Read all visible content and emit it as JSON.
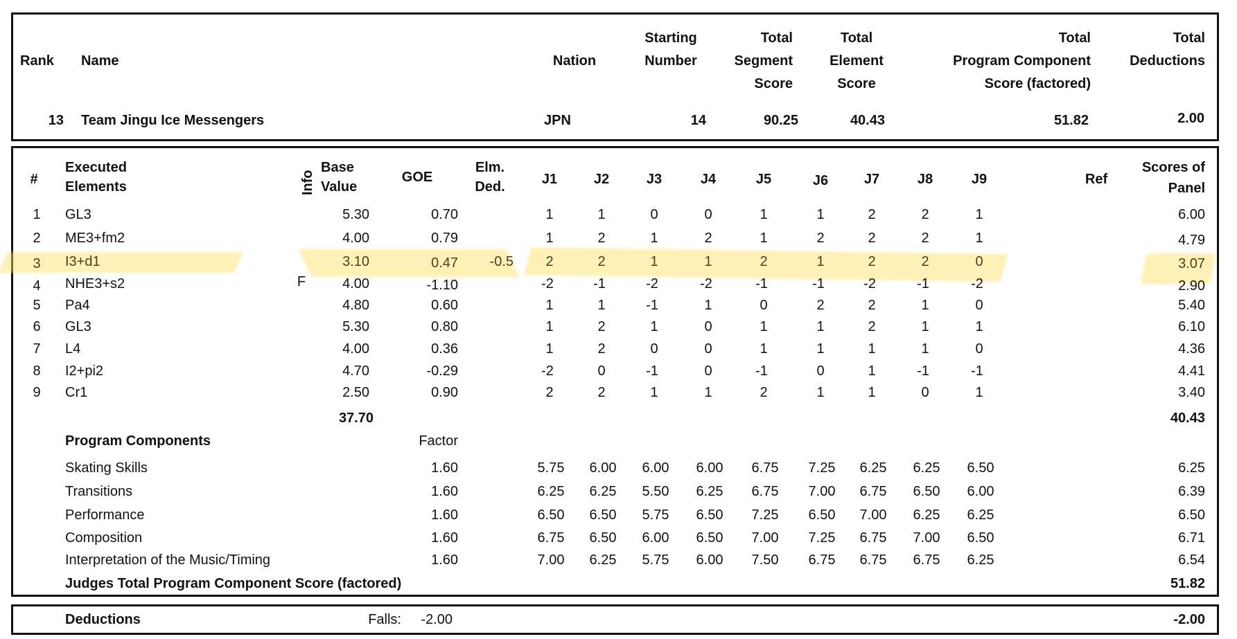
{
  "summary": {
    "headers": {
      "rank": "Rank",
      "name": "Name",
      "nation": "Nation",
      "starting_number": [
        "Starting",
        "Number"
      ],
      "total_segment_score": [
        "Total",
        "Segment",
        "Score"
      ],
      "total_element_score": [
        "Total",
        "Element",
        "Score"
      ],
      "program_component_score": [
        "Total",
        "Program  Component",
        "Score (factored)"
      ],
      "total_deductions": [
        "Total",
        "Deductions"
      ]
    },
    "row": {
      "rank": "13",
      "name": "Team Jingu Ice Messengers",
      "nation": "JPN",
      "starting_number": "14",
      "total_segment_score": "90.25",
      "total_element_score": "40.43",
      "program_component_score": "51.82",
      "total_deductions": "2.00"
    }
  },
  "elements": {
    "headers": {
      "num": "#",
      "executed": [
        "Executed",
        "Elements"
      ],
      "info": "Info",
      "base_value": [
        "Base",
        "Value"
      ],
      "goe": "GOE",
      "elm_ded": [
        "Elm.",
        "Ded."
      ],
      "judges": [
        "J1",
        "J2",
        "J3",
        "J4",
        "J5",
        "J6",
        "J7",
        "J8",
        "J9"
      ],
      "ref": "Ref",
      "scores_of_panel": [
        "Scores of",
        "Panel"
      ]
    },
    "highlight_color": "#FFDE5A",
    "highlighted_row": 3,
    "rows": [
      {
        "num": "1",
        "element": "GL3",
        "info": "",
        "base": "5.30",
        "goe": "0.70",
        "ded": "",
        "judges": [
          "1",
          "1",
          "0",
          "0",
          "1",
          "1",
          "2",
          "2",
          "1"
        ],
        "panel": "6.00"
      },
      {
        "num": "2",
        "element": "ME3+fm2",
        "info": "",
        "base": "4.00",
        "goe": "0.79",
        "ded": "",
        "judges": [
          "1",
          "2",
          "1",
          "2",
          "1",
          "2",
          "2",
          "2",
          "1"
        ],
        "panel": "4.79"
      },
      {
        "num": "3",
        "element": "I3+d1",
        "info": "",
        "base": "3.10",
        "goe": "0.47",
        "ded": "-0.5",
        "judges": [
          "2",
          "2",
          "1",
          "1",
          "2",
          "1",
          "2",
          "2",
          "0"
        ],
        "panel": "3.07"
      },
      {
        "num": "4",
        "element": "NHE3+s2",
        "info": "F",
        "base": "4.00",
        "goe": "-1.10",
        "ded": "",
        "judges": [
          "-2",
          "-1",
          "-2",
          "-2",
          "-1",
          "-1",
          "-2",
          "-1",
          "-2"
        ],
        "panel": "2.90"
      },
      {
        "num": "5",
        "element": "Pa4",
        "info": "",
        "base": "4.80",
        "goe": "0.60",
        "ded": "",
        "judges": [
          "1",
          "1",
          "-1",
          "1",
          "0",
          "2",
          "2",
          "1",
          "0"
        ],
        "panel": "5.40"
      },
      {
        "num": "6",
        "element": "GL3",
        "info": "",
        "base": "5.30",
        "goe": "0.80",
        "ded": "",
        "judges": [
          "1",
          "2",
          "1",
          "0",
          "1",
          "1",
          "2",
          "1",
          "1"
        ],
        "panel": "6.10"
      },
      {
        "num": "7",
        "element": "L4",
        "info": "",
        "base": "4.00",
        "goe": "0.36",
        "ded": "",
        "judges": [
          "1",
          "2",
          "0",
          "0",
          "1",
          "1",
          "1",
          "1",
          "0"
        ],
        "panel": "4.36"
      },
      {
        "num": "8",
        "element": "I2+pi2",
        "info": "",
        "base": "4.70",
        "goe": "-0.29",
        "ded": "",
        "judges": [
          "-2",
          "0",
          "-1",
          "0",
          "-1",
          "0",
          "1",
          "-1",
          "-1"
        ],
        "panel": "4.41"
      },
      {
        "num": "9",
        "element": "Cr1",
        "info": "",
        "base": "2.50",
        "goe": "0.90",
        "ded": "",
        "judges": [
          "2",
          "2",
          "1",
          "1",
          "2",
          "1",
          "1",
          "0",
          "1"
        ],
        "panel": "3.40"
      }
    ],
    "base_total": "37.70",
    "panel_total": "40.43"
  },
  "components": {
    "title": "Program Components",
    "factor_label": "Factor",
    "rows": [
      {
        "name": "Skating Skills",
        "factor": "1.60",
        "judges": [
          "5.75",
          "6.00",
          "6.00",
          "6.00",
          "6.75",
          "7.25",
          "6.25",
          "6.25",
          "6.50"
        ],
        "panel": "6.25"
      },
      {
        "name": "Transitions",
        "factor": "1.60",
        "judges": [
          "6.25",
          "6.25",
          "5.50",
          "6.25",
          "6.75",
          "7.00",
          "6.75",
          "6.50",
          "6.00"
        ],
        "panel": "6.39"
      },
      {
        "name": "Performance",
        "factor": "1.60",
        "judges": [
          "6.50",
          "6.50",
          "5.75",
          "6.50",
          "7.25",
          "6.50",
          "7.00",
          "6.25",
          "6.25"
        ],
        "panel": "6.50"
      },
      {
        "name": "Composition",
        "factor": "1.60",
        "judges": [
          "6.75",
          "6.50",
          "6.00",
          "6.50",
          "7.00",
          "7.25",
          "6.75",
          "7.00",
          "6.50"
        ],
        "panel": "6.71"
      },
      {
        "name": "Interpretation of the Music/Timing",
        "factor": "1.60",
        "judges": [
          "7.00",
          "6.25",
          "5.75",
          "6.00",
          "7.50",
          "6.75",
          "6.75",
          "6.75",
          "6.25"
        ],
        "panel": "6.54"
      }
    ],
    "total_label": "Judges Total Program Component Score (factored)",
    "total": "51.82"
  },
  "deductions": {
    "label": "Deductions",
    "falls_label": "Falls:",
    "falls_value": "-2.00",
    "total": "-2.00"
  }
}
